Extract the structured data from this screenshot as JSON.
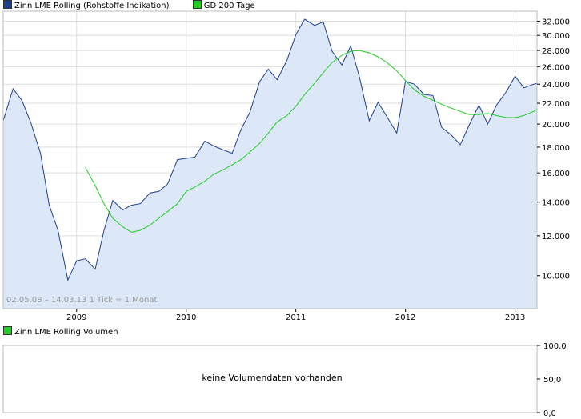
{
  "legend_top": [
    {
      "label": "Zinn LME Rolling (Rohstoffe Indikation)",
      "color": "#1f3f8f"
    },
    {
      "label": "GD 200 Tage",
      "color": "#22cc22"
    }
  ],
  "legend_bottom": [
    {
      "label": "Zinn LME Rolling Volumen",
      "color": "#22cc22"
    }
  ],
  "note": "02.05.08 – 14.03.13   1 Tick = 1 Monat",
  "volume_message": "keine Volumendaten vorhanden",
  "colors": {
    "price_line": "#1f3f8f",
    "price_fill": "#dce8f8",
    "ma_line": "#22cc22",
    "grid": "#dddddd",
    "frame": "#bbbbbb"
  },
  "chart_data": [
    {
      "type": "area",
      "scale": "log",
      "ylim": [
        8600,
        33500
      ],
      "xlim": [
        2008.33,
        2013.2
      ],
      "y_ticks": [
        10000,
        12000,
        14000,
        16000,
        18000,
        20000,
        22000,
        24000,
        26000,
        28000,
        30000,
        32000
      ],
      "y_tick_labels": [
        "10.000",
        "12.000",
        "14.000",
        "16.000",
        "18.000",
        "20.000",
        "22.000",
        "24.000",
        "26.000",
        "28.000",
        "30.000",
        "32.000"
      ],
      "x_ticks": [
        2009,
        2010,
        2011,
        2012,
        2013
      ],
      "x_tick_labels": [
        "2009",
        "2010",
        "2011",
        "2012",
        "2013"
      ],
      "series": [
        {
          "name": "Zinn LME Rolling (Rohstoffe Indikation)",
          "x": [
            2008.33,
            2008.42,
            2008.5,
            2008.58,
            2008.67,
            2008.75,
            2008.83,
            2008.92,
            2009.0,
            2009.08,
            2009.17,
            2009.25,
            2009.33,
            2009.42,
            2009.5,
            2009.58,
            2009.67,
            2009.75,
            2009.83,
            2009.92,
            2010.0,
            2010.08,
            2010.17,
            2010.25,
            2010.33,
            2010.42,
            2010.5,
            2010.58,
            2010.67,
            2010.75,
            2010.83,
            2010.92,
            2011.0,
            2011.08,
            2011.17,
            2011.25,
            2011.33,
            2011.42,
            2011.5,
            2011.58,
            2011.67,
            2011.75,
            2011.83,
            2011.92,
            2012.0,
            2012.08,
            2012.17,
            2012.25,
            2012.33,
            2012.42,
            2012.5,
            2012.58,
            2012.67,
            2012.75,
            2012.83,
            2012.92,
            2013.0,
            2013.08,
            2013.17,
            2013.2
          ],
          "y": [
            20300,
            23500,
            22300,
            20200,
            17500,
            13800,
            12300,
            9800,
            10700,
            10800,
            10300,
            12300,
            14100,
            13500,
            13800,
            13900,
            14600,
            14700,
            15200,
            17000,
            17100,
            17200,
            18500,
            18100,
            17800,
            17500,
            19500,
            21100,
            24300,
            25700,
            24500,
            26800,
            30100,
            32300,
            31400,
            31900,
            27900,
            26200,
            28600,
            24800,
            20300,
            22100,
            20700,
            19200,
            24300,
            24000,
            22900,
            22800,
            19700,
            19000,
            18200,
            19900,
            21800,
            20000,
            21800,
            23200,
            24900,
            23600,
            24000,
            24100
          ]
        },
        {
          "name": "GD 200 Tage",
          "x": [
            2009.08,
            2009.17,
            2009.25,
            2009.33,
            2009.42,
            2009.5,
            2009.58,
            2009.67,
            2009.75,
            2009.83,
            2009.92,
            2010.0,
            2010.08,
            2010.17,
            2010.25,
            2010.33,
            2010.42,
            2010.5,
            2010.58,
            2010.67,
            2010.75,
            2010.83,
            2010.92,
            2011.0,
            2011.08,
            2011.17,
            2011.25,
            2011.33,
            2011.42,
            2011.5,
            2011.58,
            2011.67,
            2011.75,
            2011.83,
            2011.92,
            2012.0,
            2012.08,
            2012.17,
            2012.25,
            2012.33,
            2012.42,
            2012.5,
            2012.58,
            2012.67,
            2012.75,
            2012.83,
            2012.92,
            2013.0,
            2013.08,
            2013.17,
            2013.2
          ],
          "y": [
            16400,
            15100,
            13900,
            13000,
            12500,
            12200,
            12300,
            12600,
            13000,
            13400,
            13900,
            14700,
            15000,
            15400,
            15900,
            16200,
            16600,
            17000,
            17600,
            18300,
            19200,
            20200,
            20800,
            21700,
            22900,
            24100,
            25300,
            26500,
            27400,
            27900,
            28000,
            27700,
            27200,
            26500,
            25500,
            24400,
            23400,
            22700,
            22300,
            21900,
            21500,
            21200,
            20900,
            20900,
            21000,
            20800,
            20600,
            20600,
            20800,
            21200,
            21400
          ]
        }
      ]
    },
    {
      "type": "bar",
      "name": "Zinn LME Rolling Volumen",
      "ylim": [
        0,
        100
      ],
      "y_ticks": [
        0,
        50,
        100
      ],
      "y_tick_labels": [
        "0,0",
        "50,0",
        "100,0"
      ]
    }
  ]
}
